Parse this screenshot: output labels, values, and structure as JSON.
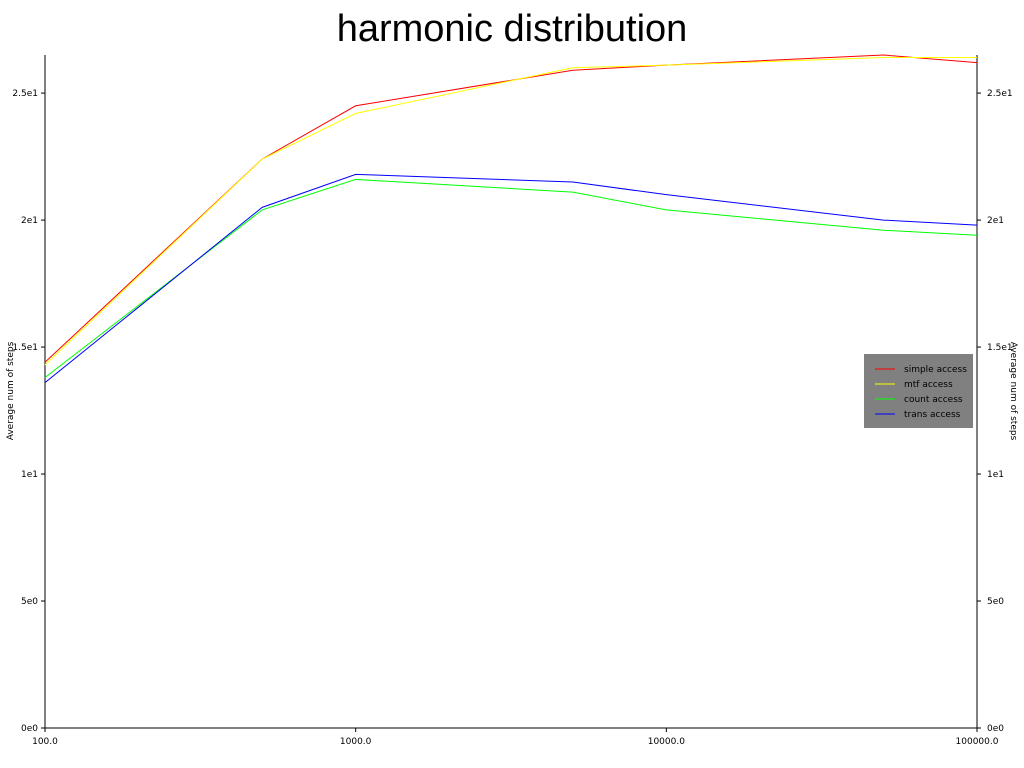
{
  "chart_data": {
    "type": "line",
    "title": "harmonic distribution",
    "xlabel": "",
    "ylabel": "Average num of steps",
    "y2label": "Average num of steps",
    "xscale": "log",
    "xlim": [
      100,
      100000
    ],
    "ylim": [
      0,
      26.5
    ],
    "x_ticks": [
      {
        "value": 100,
        "label": "100.0"
      },
      {
        "value": 1000,
        "label": "1000.0"
      },
      {
        "value": 10000,
        "label": "10000.0"
      },
      {
        "value": 100000,
        "label": "100000.0"
      }
    ],
    "y_ticks": [
      {
        "value": 0,
        "label": "0e0"
      },
      {
        "value": 5,
        "label": "5e0"
      },
      {
        "value": 10,
        "label": "1e1"
      },
      {
        "value": 15,
        "label": "1.5e1"
      },
      {
        "value": 20,
        "label": "2e1"
      },
      {
        "value": 25,
        "label": "2.5e1"
      }
    ],
    "grid": false,
    "legend_position": "right",
    "x": [
      100,
      500,
      1000,
      5000,
      10000,
      50000,
      100000
    ],
    "series": [
      {
        "name": "simple access",
        "color": "#ff0000",
        "values": [
          14.4,
          22.4,
          24.5,
          25.9,
          26.1,
          26.5,
          26.2
        ]
      },
      {
        "name": "mtf access",
        "color": "#ffff00",
        "values": [
          14.3,
          22.4,
          24.2,
          26.0,
          26.1,
          26.4,
          26.4
        ]
      },
      {
        "name": "count access",
        "color": "#00ff00",
        "values": [
          13.8,
          20.4,
          21.6,
          21.1,
          20.4,
          19.6,
          19.4
        ]
      },
      {
        "name": "trans access",
        "color": "#0000ff",
        "values": [
          13.6,
          20.5,
          21.8,
          21.5,
          21.0,
          20.0,
          19.8
        ]
      }
    ]
  }
}
